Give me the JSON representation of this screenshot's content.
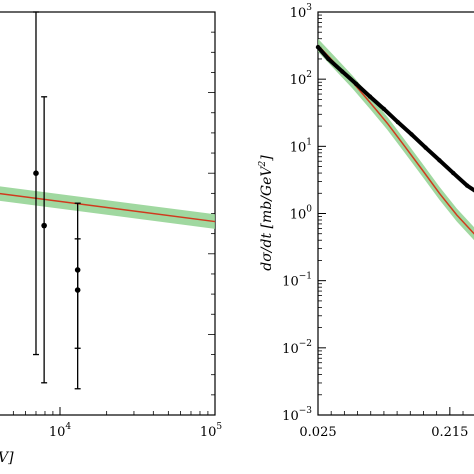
{
  "chart_data": [
    {
      "type": "line",
      "x_scale": "log",
      "xlim": [
        1000,
        100000
      ],
      "ylim": [
        0,
        1
      ],
      "xlabel": "V]",
      "ylabel": "",
      "x_ticks": [
        {
          "value": 10000,
          "base": "10",
          "exp": "4"
        },
        {
          "value": 100000,
          "base": "10",
          "exp": "5"
        }
      ],
      "band_color": "#8fd18f",
      "line_color": "#d03a1e",
      "marker_color": "#000000",
      "series": [
        {
          "type": "line-with-band",
          "x": [
            1000,
            100000
          ],
          "y": [
            0.55,
            0.48
          ],
          "band_halfwidth": 0.018
        },
        {
          "type": "errorbar",
          "points": [
            {
              "x": 7000,
              "y": 0.6,
              "err_low": 0.75,
              "err_high": 0.96
            },
            {
              "x": 7900,
              "y": 0.47,
              "err_low": 0.83,
              "err_high": 0.68
            },
            {
              "x": 13000,
              "y": 0.36,
              "err_low": 0.54,
              "err_high": 0.46
            },
            {
              "x": 13000,
              "y": 0.31,
              "err_low": 0.79,
              "err_high": 0.41
            }
          ]
        }
      ]
    },
    {
      "type": "line",
      "y_scale": "log",
      "xlim": [
        0.025,
        0.27
      ],
      "ylim": [
        0.001,
        1000
      ],
      "ylabel": "dσ/dt [mb/GeV²]",
      "ylabel_main": "dσ/dt  [mb/GeV",
      "ylabel_exp": "2",
      "ylabel_close": "]",
      "x_tick_labels": [
        "0.025",
        "0.215"
      ],
      "x_tick_values": [
        0.025,
        0.215
      ],
      "y_ticks": [
        {
          "value": 1000,
          "base": "10",
          "exp": "3"
        },
        {
          "value": 100,
          "base": "10",
          "exp": "2"
        },
        {
          "value": 10,
          "base": "10",
          "exp": "1"
        },
        {
          "value": 1,
          "base": "10",
          "exp": "0"
        },
        {
          "value": 0.1,
          "base": "10",
          "exp": "−1"
        },
        {
          "value": 0.01,
          "base": "10",
          "exp": "−2"
        },
        {
          "value": 0.001,
          "base": "10",
          "exp": "−3"
        }
      ],
      "band_color": "#8fd18f",
      "line_color": "#d03a1e",
      "data_color": "#000000",
      "series": [
        {
          "type": "data",
          "x": [
            0.025,
            0.04,
            0.06,
            0.08,
            0.1,
            0.12,
            0.14,
            0.16,
            0.18,
            0.2,
            0.22,
            0.24,
            0.26
          ],
          "y": [
            300,
            200,
            130,
            85,
            55,
            36,
            23,
            15,
            9.6,
            6.2,
            4.0,
            2.6,
            1.9
          ]
        },
        {
          "type": "model-with-band",
          "x": [
            0.025,
            0.05,
            0.075,
            0.1,
            0.125,
            0.15,
            0.175,
            0.2,
            0.225,
            0.25,
            0.27
          ],
          "y": [
            320,
            170,
            90,
            45,
            22,
            10,
            4.5,
            2.0,
            0.95,
            0.5,
            0.33
          ],
          "band_factor": 1.25
        }
      ]
    }
  ]
}
